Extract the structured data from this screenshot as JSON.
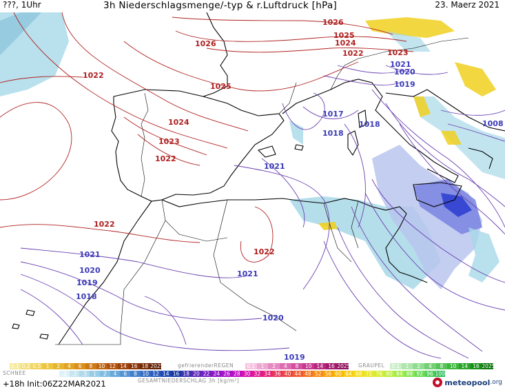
{
  "header": {
    "left_text": "???, 1Uhr",
    "title": "3h Niederschlagsmenge/-typ & r.Luftdruck [hPa]",
    "date": "23. Maerz 2021"
  },
  "pressure_labels_red": [
    "1026",
    "1025",
    "1024",
    "1022",
    "1023",
    "1026",
    "1025",
    "1022",
    "1024",
    "1023",
    "1022",
    "1022",
    "1022"
  ],
  "pressure_labels_blue": [
    "1021",
    "1020",
    "1019",
    "1017",
    "1018",
    "1018",
    "1008",
    "1021",
    "1021",
    "1020",
    "1019",
    "1018",
    "1021",
    "1020",
    "1019"
  ],
  "legend": {
    "snow": {
      "title": "SCHNEE",
      "values": [
        "0.1",
        "0.2",
        "0.5",
        "1",
        "2",
        "4",
        "6",
        "8",
        "10",
        "12",
        "14",
        "16",
        "18",
        "2025+"
      ]
    },
    "freezing_rain": {
      "title": "gefrierenderREGEN",
      "values": [
        "0.1",
        "1",
        "2",
        "4",
        "8",
        "10",
        "14",
        "16",
        "2025+"
      ]
    },
    "graupel": {
      "title": "GRAUPEL",
      "values": [
        "0.1",
        "1",
        "2",
        "4",
        "8",
        "10",
        "14",
        "16",
        "2025+"
      ]
    },
    "total": {
      "title": "GESAMTNIEDERSCHLAG 3h [kg/m²]",
      "values": [
        ".1",
        ".2",
        ".5",
        "1",
        "2",
        "4",
        "6",
        "8",
        "10",
        "12",
        "14",
        "16",
        "18",
        "20",
        "22",
        "24",
        "26",
        "28",
        "30",
        "32",
        "34",
        "36",
        "40",
        "44",
        "48",
        "52",
        "56",
        "60",
        "64",
        "68",
        "72",
        "76",
        "80",
        "84",
        "88",
        "92",
        "96",
        "100"
      ]
    }
  },
  "footer": {
    "run_info": "+18h  Init:06Z22MAR2021",
    "logo_name": "meteopool",
    "logo_tld": ".org"
  },
  "colors": {
    "high_isobar": "#b02020",
    "low_isobar": "#6a3fb0",
    "coast": "#000000",
    "rain_light": "#a8d8e8",
    "rain_heavy": "#3040d0",
    "snow": "#f0d020"
  }
}
